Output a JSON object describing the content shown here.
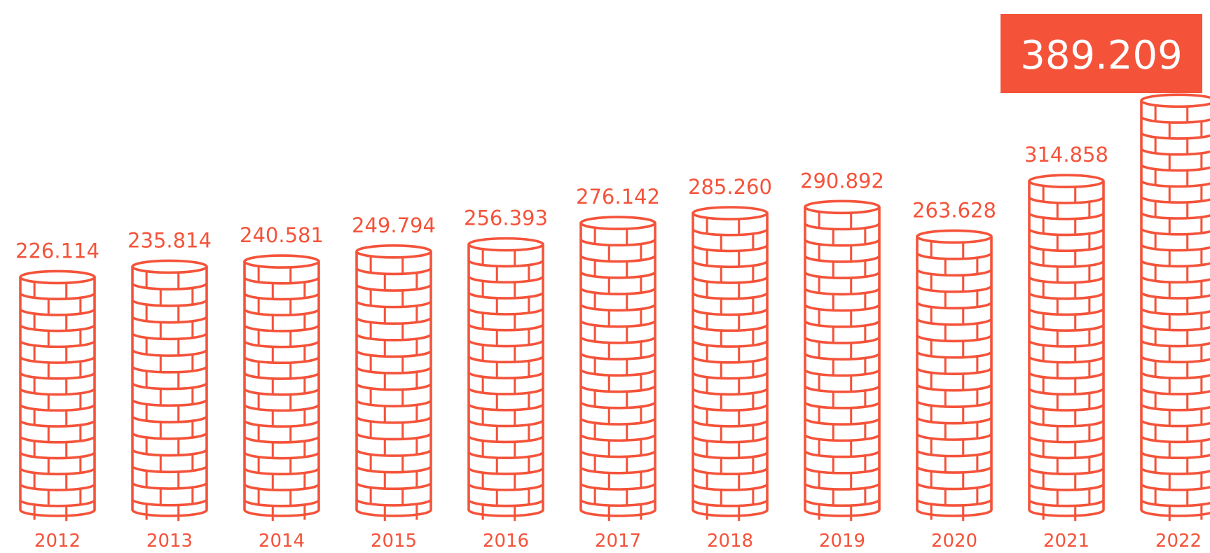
{
  "chart_data": {
    "type": "bar",
    "title": "",
    "xlabel": "",
    "ylabel": "",
    "categories": [
      "2012",
      "2013",
      "2014",
      "2015",
      "2016",
      "2017",
      "2018",
      "2019",
      "2020",
      "2021",
      "2022"
    ],
    "values": [
      226.114,
      235.814,
      240.581,
      249.794,
      256.393,
      276.142,
      285.26,
      290.892,
      263.628,
      314.858,
      389.209
    ],
    "value_labels": [
      "226.114",
      "235.814",
      "240.581",
      "249.794",
      "256.393",
      "276.142",
      "285.260",
      "290.892",
      "263.628",
      "314.858",
      "389.209"
    ],
    "highlight_index": 10,
    "ylim": [
      0,
      400
    ],
    "grid": false,
    "legend": "none",
    "colors": {
      "accent": "#F4533A",
      "highlight_text": "#FFFFFF",
      "background": "#FFFFFF"
    },
    "mark_icon": "coin-stack-icon"
  }
}
